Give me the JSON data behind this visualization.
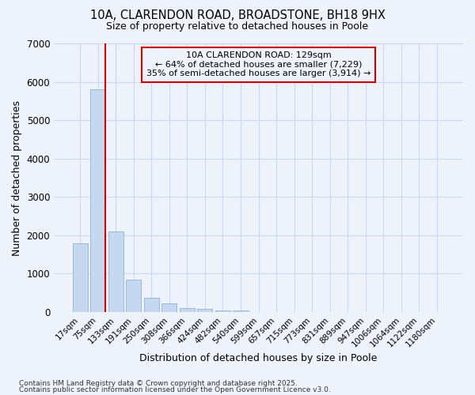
{
  "title1": "10A, CLARENDON ROAD, BROADSTONE, BH18 9HX",
  "title2": "Size of property relative to detached houses in Poole",
  "xlabel": "Distribution of detached houses by size in Poole",
  "ylabel": "Number of detached properties",
  "bar_labels": [
    "17sqm",
    "75sqm",
    "133sqm",
    "191sqm",
    "250sqm",
    "308sqm",
    "366sqm",
    "424sqm",
    "482sqm",
    "540sqm",
    "599sqm",
    "657sqm",
    "715sqm",
    "773sqm",
    "831sqm",
    "889sqm",
    "947sqm",
    "1006sqm",
    "1064sqm",
    "1122sqm",
    "1180sqm"
  ],
  "bar_heights": [
    1800,
    5800,
    2100,
    850,
    370,
    230,
    110,
    80,
    50,
    50,
    10,
    5,
    3,
    0,
    0,
    0,
    0,
    0,
    0,
    0,
    0
  ],
  "bar_color": "#c5d8f0",
  "bar_edge_color": "#8ab4d8",
  "vline_color": "#cc0000",
  "annotation_title": "10A CLARENDON ROAD: 129sqm",
  "annotation_line1": "← 64% of detached houses are smaller (7,229)",
  "annotation_line2": "35% of semi-detached houses are larger (3,914) →",
  "annotation_box_color": "#cc0000",
  "ylim": [
    0,
    7000
  ],
  "yticks": [
    0,
    1000,
    2000,
    3000,
    4000,
    5000,
    6000,
    7000
  ],
  "grid_color": "#c8d8ee",
  "bg_color": "#eef2fb",
  "footer1": "Contains HM Land Registry data © Crown copyright and database right 2025.",
  "footer2": "Contains public sector information licensed under the Open Government Licence v3.0."
}
